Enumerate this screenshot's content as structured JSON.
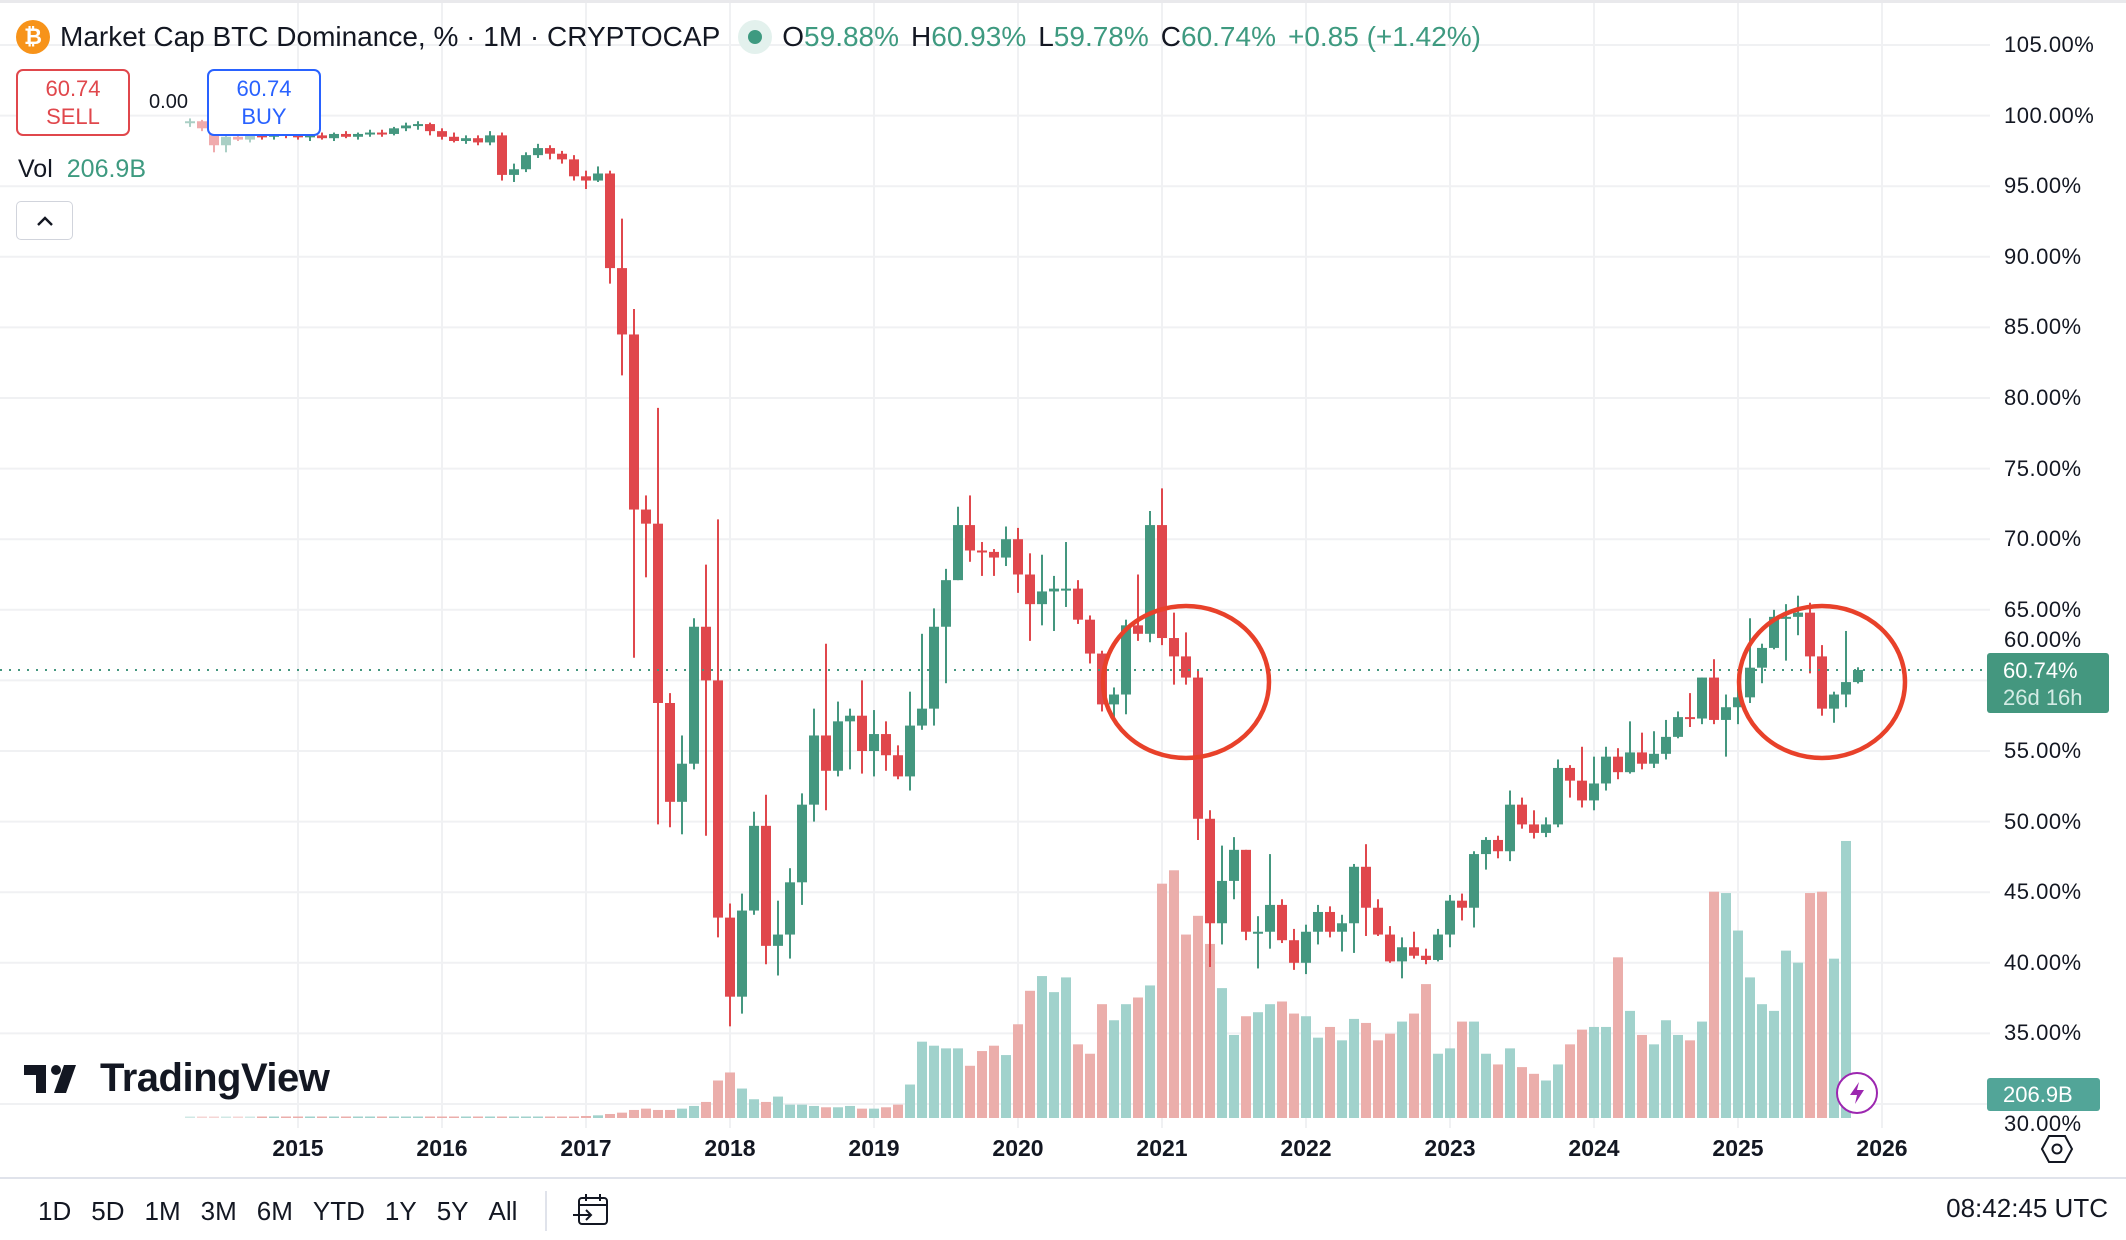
{
  "header": {
    "symbol_icon": "bitcoin-icon",
    "title": "Market Cap BTC Dominance, % · 1M · CRYPTOCAP",
    "market_status": "open",
    "ohlc": {
      "o_label": "O",
      "o": "59.88%",
      "h_label": "H",
      "h": "60.93%",
      "l_label": "L",
      "l": "59.78%",
      "c_label": "C",
      "c": "60.74%",
      "change": "+0.85 (+1.42%)"
    }
  },
  "trade": {
    "sell_price": "60.74",
    "sell_label": "SELL",
    "spread": "0.00",
    "buy_price": "60.74",
    "buy_label": "BUY"
  },
  "volume_legend": {
    "label": "Vol",
    "value": "206.9B"
  },
  "logo": {
    "text": "TradingView"
  },
  "price_axis": {
    "last_price": "60.74%",
    "countdown": "26d 16h",
    "volume_label": "206.9B"
  },
  "bottom_bar": {
    "ranges": [
      "1D",
      "5D",
      "1M",
      "3M",
      "6M",
      "YTD",
      "1Y",
      "5Y",
      "All"
    ],
    "clock": "08:42:45 UTC"
  },
  "colors": {
    "up": "#44977f",
    "down": "#e0474c",
    "up_volume": "#a1d2cc",
    "down_volume": "#ebaeab",
    "annotation": "#e8412a",
    "grid": "#f0f1f3"
  },
  "annotations": [
    {
      "shape": "ellipse",
      "around": "2021-04"
    },
    {
      "shape": "ellipse",
      "around": "2025-09"
    }
  ],
  "chart_data": {
    "type": "candlestick",
    "interval": "1M",
    "ylabel": "",
    "ylim": [
      30,
      105
    ],
    "y_ticks": [
      "105.00%",
      "100.00%",
      "95.00%",
      "90.00%",
      "85.00%",
      "80.00%",
      "75.00%",
      "70.00%",
      "65.00%",
      "60.00%",
      "55.00%",
      "50.00%",
      "45.00%",
      "40.00%",
      "35.00%",
      "30.00%"
    ],
    "x_ticks": [
      "2015",
      "2016",
      "2017",
      "2018",
      "2019",
      "2020",
      "2021",
      "2022",
      "2023",
      "2024",
      "2025",
      "2026"
    ],
    "grid": true,
    "last_value": 60.74,
    "columns": [
      "month",
      "open",
      "high",
      "low",
      "close",
      "volume_B"
    ],
    "candles": [
      [
        "2014-04",
        99.5,
        99.8,
        99.2,
        99.6,
        0.3
      ],
      [
        "2014-05",
        99.6,
        99.7,
        98.9,
        99.1,
        0.3
      ],
      [
        "2014-06",
        99.1,
        99.3,
        97.4,
        97.9,
        0.3
      ],
      [
        "2014-07",
        97.9,
        98.6,
        97.4,
        98.5,
        0.3
      ],
      [
        "2014-08",
        98.5,
        98.8,
        98.2,
        98.3,
        0.3
      ],
      [
        "2014-09",
        98.3,
        98.7,
        98.1,
        98.6,
        0.3
      ],
      [
        "2014-10",
        98.6,
        98.8,
        98.3,
        98.5,
        0.3
      ],
      [
        "2014-11",
        98.5,
        98.8,
        98.3,
        98.7,
        0.3
      ],
      [
        "2014-12",
        98.7,
        98.9,
        98.4,
        98.6,
        0.3
      ],
      [
        "2015-01",
        98.6,
        98.9,
        98.3,
        98.5,
        0.5
      ],
      [
        "2015-02",
        98.5,
        98.8,
        98.2,
        98.6,
        0.5
      ],
      [
        "2015-03",
        98.6,
        98.8,
        98.3,
        98.4,
        0.5
      ],
      [
        "2015-04",
        98.4,
        98.8,
        98.2,
        98.7,
        0.5
      ],
      [
        "2015-05",
        98.7,
        98.9,
        98.4,
        98.5,
        0.5
      ],
      [
        "2015-06",
        98.5,
        98.8,
        98.3,
        98.7,
        0.5
      ],
      [
        "2015-07",
        98.7,
        99.0,
        98.5,
        98.8,
        0.5
      ],
      [
        "2015-08",
        98.8,
        99.0,
        98.5,
        98.7,
        0.5
      ],
      [
        "2015-09",
        98.7,
        99.2,
        98.6,
        99.1,
        0.5
      ],
      [
        "2015-10",
        99.1,
        99.5,
        98.9,
        99.3,
        0.5
      ],
      [
        "2015-11",
        99.3,
        99.6,
        99.0,
        99.4,
        0.5
      ],
      [
        "2015-12",
        99.4,
        99.5,
        98.6,
        98.9,
        0.5
      ],
      [
        "2016-01",
        98.9,
        99.1,
        98.3,
        98.5,
        1
      ],
      [
        "2016-02",
        98.5,
        98.8,
        98.1,
        98.2,
        1
      ],
      [
        "2016-03",
        98.2,
        98.6,
        98.0,
        98.4,
        1
      ],
      [
        "2016-04",
        98.4,
        98.6,
        97.9,
        98.1,
        1
      ],
      [
        "2016-05",
        98.1,
        98.9,
        97.9,
        98.6,
        1
      ],
      [
        "2016-06",
        98.6,
        98.8,
        95.4,
        95.8,
        1
      ],
      [
        "2016-07",
        95.8,
        96.6,
        95.3,
        96.2,
        1
      ],
      [
        "2016-08",
        96.2,
        97.4,
        96.0,
        97.2,
        1
      ],
      [
        "2016-09",
        97.2,
        98.0,
        97.0,
        97.7,
        1
      ],
      [
        "2016-10",
        97.7,
        97.9,
        96.9,
        97.3,
        1
      ],
      [
        "2016-11",
        97.3,
        97.5,
        96.6,
        96.9,
        1
      ],
      [
        "2016-12",
        96.9,
        97.2,
        95.4,
        95.7,
        1
      ],
      [
        "2017-01",
        95.7,
        96.1,
        94.8,
        95.4,
        1.5
      ],
      [
        "2017-02",
        95.4,
        96.4,
        95.3,
        95.9,
        2
      ],
      [
        "2017-03",
        95.9,
        96.1,
        88.1,
        89.2,
        3
      ],
      [
        "2017-04",
        89.2,
        92.7,
        81.6,
        84.5,
        4
      ],
      [
        "2017-05",
        84.5,
        86.3,
        61.6,
        72.1,
        6
      ],
      [
        "2017-06",
        72.1,
        73.1,
        67.3,
        71.1,
        7
      ],
      [
        "2017-07",
        71.1,
        79.3,
        49.8,
        58.4,
        6
      ],
      [
        "2017-08",
        58.4,
        59.1,
        49.6,
        51.4,
        6
      ],
      [
        "2017-09",
        51.4,
        56.1,
        49.1,
        54.1,
        7
      ],
      [
        "2017-10",
        54.1,
        64.4,
        53.7,
        63.8,
        9
      ],
      [
        "2017-11",
        63.8,
        68.2,
        49.0,
        60.0,
        12
      ],
      [
        "2017-12",
        60.0,
        71.4,
        41.8,
        43.2,
        28
      ],
      [
        "2018-01",
        43.2,
        44.2,
        35.5,
        37.6,
        34
      ],
      [
        "2018-02",
        37.6,
        44.9,
        36.4,
        43.7,
        22
      ],
      [
        "2018-03",
        43.7,
        50.7,
        43.4,
        49.7,
        14
      ],
      [
        "2018-04",
        49.7,
        51.9,
        39.9,
        41.2,
        12
      ],
      [
        "2018-05",
        41.2,
        44.4,
        39.1,
        42.0,
        16
      ],
      [
        "2018-06",
        42.0,
        46.7,
        40.3,
        45.7,
        10
      ],
      [
        "2018-07",
        45.7,
        52.0,
        44.1,
        51.2,
        10
      ],
      [
        "2018-08",
        51.2,
        58.0,
        50.0,
        56.1,
        9
      ],
      [
        "2018-09",
        56.1,
        62.6,
        50.8,
        53.6,
        8
      ],
      [
        "2018-10",
        53.6,
        58.5,
        53.2,
        57.1,
        8
      ],
      [
        "2018-11",
        57.1,
        58.0,
        53.7,
        57.5,
        9
      ],
      [
        "2018-12",
        57.5,
        60.0,
        53.4,
        55.0,
        7
      ],
      [
        "2019-01",
        55.0,
        57.9,
        53.2,
        56.2,
        7
      ],
      [
        "2019-02",
        56.2,
        57.1,
        53.6,
        54.7,
        8
      ],
      [
        "2019-03",
        54.7,
        55.4,
        53.0,
        53.2,
        10
      ],
      [
        "2019-04",
        53.2,
        59.2,
        52.2,
        56.8,
        25
      ],
      [
        "2019-05",
        56.8,
        63.3,
        56.5,
        58.0,
        57
      ],
      [
        "2019-06",
        58.0,
        65.1,
        56.8,
        63.8,
        54
      ],
      [
        "2019-07",
        63.8,
        67.9,
        59.8,
        67.1,
        52
      ],
      [
        "2019-08",
        67.1,
        72.3,
        67.1,
        71.0,
        52
      ],
      [
        "2019-09",
        71.0,
        73.1,
        68.4,
        69.2,
        39
      ],
      [
        "2019-10",
        69.2,
        69.8,
        67.4,
        69.1,
        50
      ],
      [
        "2019-11",
        69.1,
        69.3,
        67.4,
        68.7,
        54
      ],
      [
        "2019-12",
        68.7,
        70.9,
        68.1,
        70.0,
        47
      ],
      [
        "2020-01",
        70.0,
        70.8,
        66.2,
        67.5,
        70
      ],
      [
        "2020-02",
        67.5,
        69.0,
        62.8,
        65.4,
        95
      ],
      [
        "2020-03",
        65.4,
        68.9,
        63.9,
        66.3,
        106
      ],
      [
        "2020-04",
        66.3,
        67.4,
        63.5,
        66.5,
        94
      ],
      [
        "2020-05",
        66.5,
        69.8,
        65.2,
        66.5,
        105
      ],
      [
        "2020-06",
        66.5,
        67.1,
        64.0,
        64.3,
        55
      ],
      [
        "2020-07",
        64.3,
        64.6,
        61.2,
        61.9,
        48
      ],
      [
        "2020-08",
        61.9,
        62.1,
        57.8,
        58.3,
        85
      ],
      [
        "2020-09",
        58.3,
        59.5,
        57.3,
        59.0,
        73
      ],
      [
        "2020-10",
        59.0,
        64.3,
        57.6,
        63.9,
        85
      ],
      [
        "2020-11",
        63.9,
        67.5,
        62.8,
        63.3,
        90
      ],
      [
        "2020-12",
        63.3,
        72.0,
        62.7,
        71.0,
        99
      ],
      [
        "2021-01",
        71.0,
        73.6,
        62.5,
        63.0,
        175
      ],
      [
        "2021-02",
        63.0,
        64.8,
        59.7,
        61.7,
        185
      ],
      [
        "2021-03",
        61.7,
        63.4,
        59.7,
        60.2,
        137
      ],
      [
        "2021-04",
        60.2,
        60.7,
        48.7,
        50.2,
        151
      ],
      [
        "2021-05",
        50.2,
        50.8,
        39.7,
        42.8,
        130
      ],
      [
        "2021-06",
        42.8,
        48.3,
        41.3,
        45.8,
        97
      ],
      [
        "2021-07",
        45.8,
        48.9,
        44.5,
        48.0,
        62
      ],
      [
        "2021-08",
        48.0,
        48.0,
        41.6,
        42.2,
        76
      ],
      [
        "2021-09",
        42.2,
        43.3,
        39.6,
        42.2,
        79
      ],
      [
        "2021-10",
        42.2,
        47.7,
        41.0,
        44.1,
        85
      ],
      [
        "2021-11",
        44.1,
        44.5,
        41.4,
        41.6,
        87
      ],
      [
        "2021-12",
        41.6,
        42.4,
        39.5,
        40.0,
        78
      ],
      [
        "2022-01",
        40.0,
        42.7,
        39.2,
        42.2,
        76
      ],
      [
        "2022-02",
        42.2,
        44.1,
        41.3,
        43.6,
        60
      ],
      [
        "2022-03",
        43.6,
        44.0,
        41.8,
        42.2,
        68
      ],
      [
        "2022-04",
        42.2,
        43.4,
        40.8,
        42.8,
        58
      ],
      [
        "2022-05",
        42.8,
        47.0,
        40.7,
        46.8,
        74
      ],
      [
        "2022-06",
        46.8,
        48.4,
        41.9,
        43.9,
        71
      ],
      [
        "2022-07",
        43.9,
        44.5,
        41.9,
        42.0,
        58
      ],
      [
        "2022-08",
        42.0,
        42.6,
        40.0,
        40.1,
        63
      ],
      [
        "2022-09",
        40.1,
        41.8,
        38.9,
        41.1,
        72
      ],
      [
        "2022-10",
        41.1,
        42.2,
        40.3,
        40.5,
        78
      ],
      [
        "2022-11",
        40.5,
        41.0,
        39.9,
        40.2,
        100
      ],
      [
        "2022-12",
        40.2,
        42.4,
        40.1,
        42.0,
        48
      ],
      [
        "2023-01",
        42.0,
        44.8,
        41.1,
        44.4,
        52
      ],
      [
        "2023-02",
        44.4,
        44.9,
        43.0,
        43.9,
        72
      ],
      [
        "2023-03",
        43.9,
        47.9,
        42.5,
        47.7,
        72
      ],
      [
        "2023-04",
        47.7,
        48.9,
        46.6,
        48.7,
        48
      ],
      [
        "2023-05",
        48.7,
        49.0,
        47.4,
        47.9,
        40
      ],
      [
        "2023-06",
        47.9,
        52.2,
        47.2,
        51.2,
        52
      ],
      [
        "2023-07",
        51.2,
        51.7,
        49.5,
        49.8,
        38
      ],
      [
        "2023-08",
        49.8,
        50.8,
        48.8,
        49.2,
        33
      ],
      [
        "2023-09",
        49.2,
        50.3,
        48.9,
        49.8,
        28
      ],
      [
        "2023-10",
        49.8,
        54.4,
        49.6,
        53.8,
        40
      ],
      [
        "2023-11",
        53.8,
        54.0,
        51.7,
        52.9,
        55
      ],
      [
        "2023-12",
        52.9,
        55.3,
        51.0,
        51.5,
        66
      ],
      [
        "2024-01",
        51.5,
        54.6,
        50.8,
        52.7,
        68
      ],
      [
        "2024-02",
        52.7,
        55.3,
        52.2,
        54.6,
        68
      ],
      [
        "2024-03",
        54.6,
        55.2,
        53.0,
        53.5,
        120
      ],
      [
        "2024-04",
        53.5,
        57.1,
        53.4,
        54.9,
        80
      ],
      [
        "2024-05",
        54.9,
        56.3,
        53.7,
        54.1,
        62
      ],
      [
        "2024-06",
        54.1,
        56.4,
        53.8,
        54.8,
        55
      ],
      [
        "2024-07",
        54.8,
        57.2,
        54.4,
        56.0,
        73
      ],
      [
        "2024-08",
        56.0,
        57.8,
        55.9,
        57.4,
        62
      ],
      [
        "2024-09",
        57.4,
        59.1,
        56.7,
        57.3,
        58
      ],
      [
        "2024-10",
        57.3,
        60.2,
        56.9,
        60.2,
        72
      ],
      [
        "2024-11",
        60.2,
        61.5,
        56.9,
        57.2,
        169
      ],
      [
        "2024-12",
        57.2,
        59.0,
        54.6,
        58.1,
        168
      ],
      [
        "2025-01",
        58.1,
        60.0,
        56.9,
        58.8,
        140
      ],
      [
        "2025-02",
        58.8,
        64.4,
        58.4,
        60.9,
        105
      ],
      [
        "2025-03",
        60.9,
        62.6,
        59.8,
        62.3,
        85
      ],
      [
        "2025-04",
        62.3,
        65.0,
        62.2,
        64.5,
        80
      ],
      [
        "2025-05",
        64.5,
        65.4,
        61.4,
        64.5,
        125
      ],
      [
        "2025-06",
        64.5,
        66.0,
        63.2,
        64.8,
        116
      ],
      [
        "2025-07",
        64.8,
        65.5,
        60.5,
        61.7,
        168
      ],
      [
        "2025-08",
        61.7,
        62.5,
        57.5,
        58.0,
        169
      ],
      [
        "2025-09",
        58.0,
        59.2,
        57.0,
        59.0,
        119
      ],
      [
        "2025-10",
        59.0,
        63.5,
        58.1,
        59.88,
        206.9
      ],
      [
        "2025-11",
        59.88,
        60.93,
        59.78,
        60.74,
        null
      ]
    ]
  }
}
